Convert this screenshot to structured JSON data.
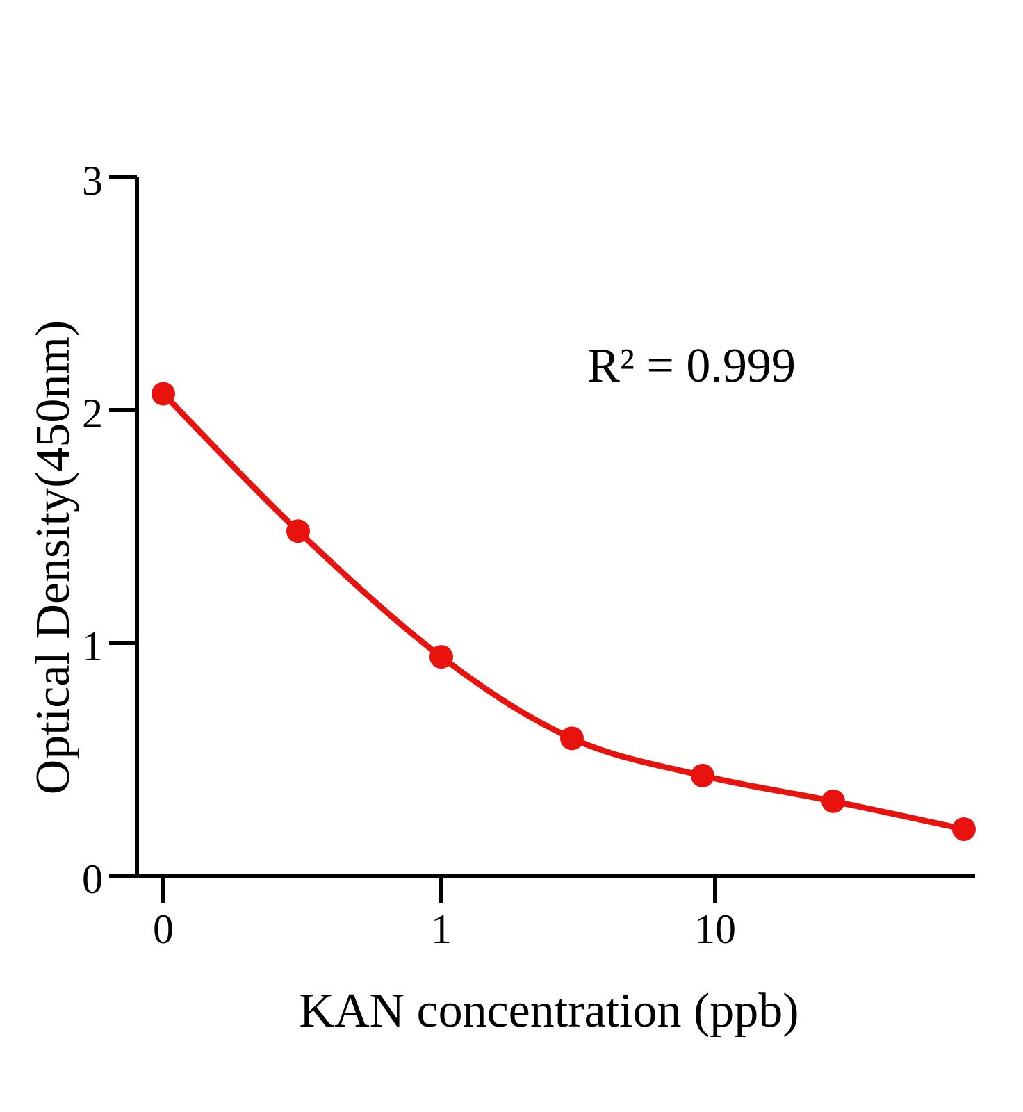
{
  "chart_data": {
    "type": "line",
    "title": "",
    "xlabel": "KAN concentration (ppb)",
    "ylabel": "Optical Density(450nm)",
    "annotation": "R² = 0.999",
    "x": [
      0,
      0.3,
      1,
      3,
      9,
      27,
      81
    ],
    "y": [
      2.07,
      1.48,
      0.94,
      0.59,
      0.43,
      0.32,
      0.2
    ],
    "x_tick_values": [
      0,
      1,
      10
    ],
    "x_tick_labels": [
      "0",
      "1",
      "10"
    ],
    "y_tick_values": [
      0,
      1,
      2,
      3
    ],
    "y_tick_labels": [
      "0",
      "1",
      "2",
      "3"
    ],
    "ylim": [
      0,
      3
    ],
    "xscale": "log (zero standard plotted at left end of axis)",
    "grid": false,
    "legend": null,
    "marker": "circle",
    "colors": {
      "curve": "#e8120f",
      "marker": "#e8120f",
      "axis": "#000000",
      "text": "#000000",
      "background": "#ffffff"
    }
  }
}
